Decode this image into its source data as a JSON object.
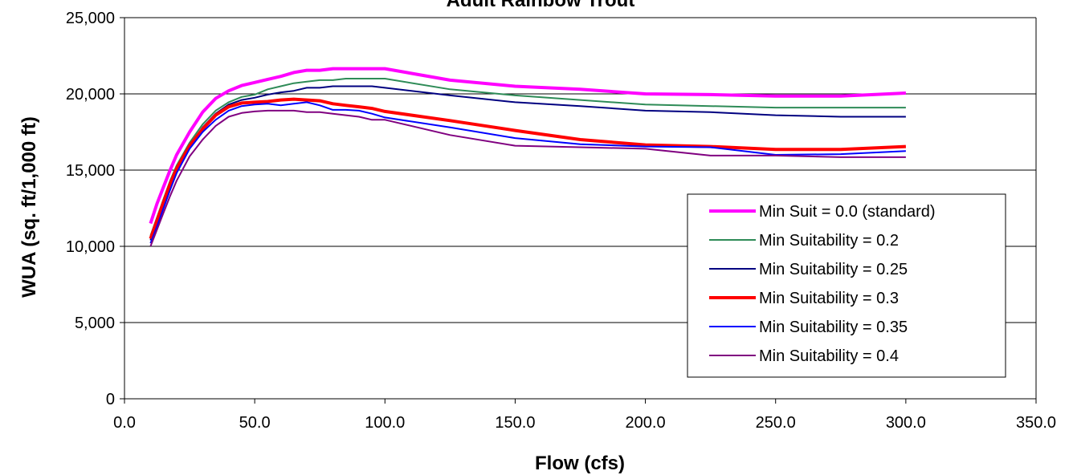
{
  "chart_data": {
    "type": "line",
    "title": "Adult Rainbow Trout",
    "xlabel": "Flow (cfs)",
    "ylabel": "WUA (sq. ft/1,000 ft)",
    "xlim": [
      0,
      350
    ],
    "ylim": [
      0,
      25000
    ],
    "x_ticks": [
      "0.0",
      "50.0",
      "100.0",
      "150.0",
      "200.0",
      "250.0",
      "300.0",
      "350.0"
    ],
    "y_ticks": [
      "0",
      "5,000",
      "10,000",
      "15,000",
      "20,000",
      "25,000"
    ],
    "grid": "horizontal",
    "legend_position": "lower-right",
    "x": [
      10,
      12.5,
      15,
      17.5,
      20,
      25,
      30,
      35,
      40,
      45,
      50,
      55,
      60,
      65,
      70,
      75,
      80,
      85,
      90,
      95,
      100,
      125,
      150,
      175,
      200,
      225,
      250,
      275,
      300
    ],
    "series": [
      {
        "name": "Min Suit = 0.0 (standard)",
        "color": "#ff00ff",
        "width": 4,
        "values": [
          11500,
          12800,
          13900,
          15000,
          16000,
          17500,
          18800,
          19700,
          20200,
          20550,
          20750,
          20950,
          21150,
          21400,
          21550,
          21550,
          21650,
          21650,
          21650,
          21650,
          21650,
          20900,
          20500,
          20300,
          20000,
          19950,
          19850,
          19850,
          20050
        ]
      },
      {
        "name": "Min Suitability = 0.2",
        "color": "#2e8b57",
        "width": 2,
        "values": [
          10700,
          11900,
          13100,
          14300,
          15300,
          16800,
          18000,
          18900,
          19450,
          19800,
          19950,
          20300,
          20500,
          20700,
          20800,
          20900,
          20900,
          21000,
          21000,
          21000,
          21000,
          20300,
          19900,
          19600,
          19300,
          19200,
          19100,
          19100,
          19100
        ]
      },
      {
        "name": "Min Suitability = 0.25",
        "color": "#000080",
        "width": 2,
        "values": [
          10400,
          11600,
          12800,
          14000,
          15000,
          16500,
          17800,
          18700,
          19300,
          19600,
          19750,
          19950,
          20100,
          20200,
          20400,
          20400,
          20500,
          20500,
          20500,
          20500,
          20400,
          19900,
          19450,
          19200,
          18900,
          18800,
          18600,
          18500,
          18500
        ]
      },
      {
        "name": "Min Suitability = 0.3",
        "color": "#ff0000",
        "width": 4,
        "values": [
          10500,
          11700,
          12900,
          14100,
          15100,
          16600,
          17700,
          18600,
          19150,
          19400,
          19450,
          19500,
          19600,
          19650,
          19600,
          19550,
          19350,
          19250,
          19150,
          19050,
          18850,
          18250,
          17600,
          17000,
          16650,
          16550,
          16350,
          16350,
          16550
        ]
      },
      {
        "name": "Min Suitability = 0.35",
        "color": "#0000ff",
        "width": 2,
        "values": [
          10200,
          11300,
          12500,
          13700,
          14800,
          16400,
          17500,
          18300,
          18900,
          19200,
          19300,
          19350,
          19250,
          19350,
          19450,
          19250,
          18950,
          18950,
          18900,
          18700,
          18450,
          17800,
          17100,
          16700,
          16550,
          16500,
          16000,
          16050,
          16250
        ]
      },
      {
        "name": "Min Suitability = 0.4",
        "color": "#800080",
        "width": 2,
        "values": [
          10000,
          11100,
          12200,
          13300,
          14300,
          15900,
          17000,
          17900,
          18500,
          18750,
          18850,
          18900,
          18900,
          18900,
          18800,
          18800,
          18700,
          18600,
          18500,
          18300,
          18300,
          17300,
          16600,
          16500,
          16400,
          15950,
          15950,
          15850,
          15850
        ]
      }
    ]
  }
}
